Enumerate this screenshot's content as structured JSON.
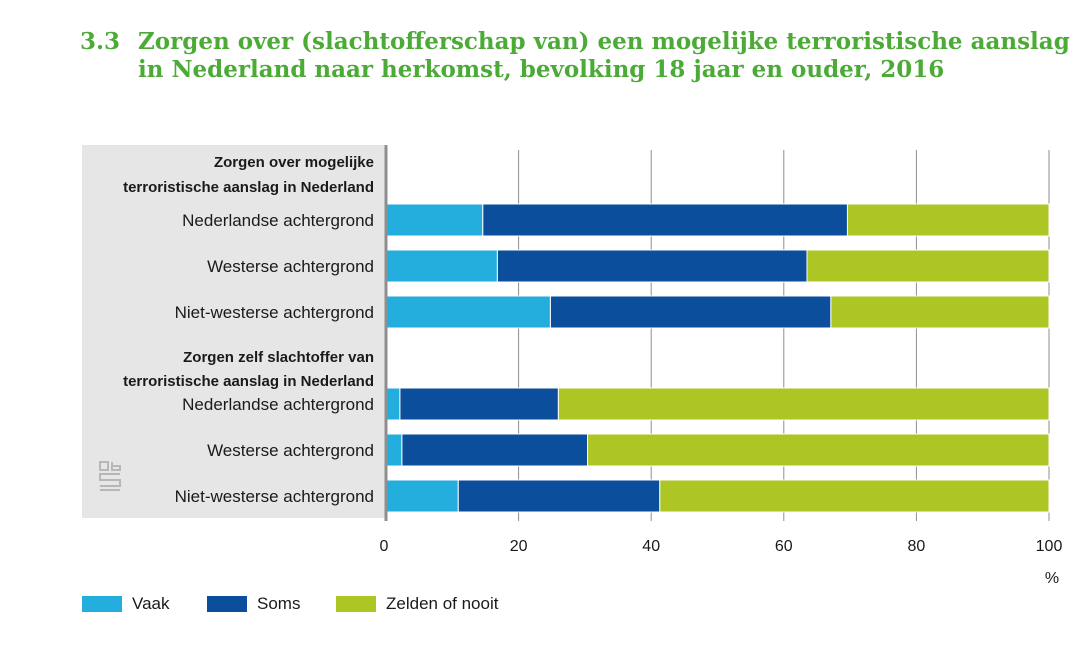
{
  "title": {
    "number": "3.3",
    "line1": "Zorgen over (slachtofferschap van) een mogelijke terroristische aanslag",
    "line2": "in Nederland naar herkomst, bevolking 18 jaar en ouder, 2016"
  },
  "logo_icon": "cbs-logo-icon",
  "colors": {
    "vaak": "#23aedd",
    "soms": "#0b4f9c",
    "zelden": "#aec623",
    "panel": "#e6e6e6",
    "axis": "#8f8f8f",
    "title": "#4cab37"
  },
  "chart_data": {
    "type": "bar",
    "orientation": "horizontal",
    "stacked": true,
    "xlim": [
      0,
      100
    ],
    "xticks": [
      "0",
      "20",
      "40",
      "60",
      "80",
      "100"
    ],
    "xunit": "%",
    "grid": true,
    "legend_position": "bottom-left",
    "groups": [
      {
        "heading": [
          "Zorgen over mogelijke",
          "terroristische aanslag in Nederland"
        ],
        "rows": [
          {
            "label": "Nederlandse achtergrond",
            "values": [
              14.6,
              55.0,
              30.4
            ]
          },
          {
            "label": "Westerse achtergrond",
            "values": [
              16.8,
              46.7,
              36.5
            ]
          },
          {
            "label": "Niet-westerse achtergrond",
            "values": [
              24.8,
              42.3,
              32.9
            ]
          }
        ]
      },
      {
        "heading": [
          "Zorgen zelf slachtoffer van",
          "terroristische aanslag in Nederland"
        ],
        "rows": [
          {
            "label": "Nederlandse achtergrond",
            "values": [
              2.1,
              23.9,
              74.0
            ]
          },
          {
            "label": "Westerse achtergrond",
            "values": [
              2.4,
              28.0,
              69.6
            ]
          },
          {
            "label": "Niet-westerse achtergrond",
            "values": [
              10.9,
              30.4,
              58.7
            ]
          }
        ]
      }
    ],
    "series": [
      {
        "name": "Vaak"
      },
      {
        "name": "Soms"
      },
      {
        "name": "Zelden of nooit"
      }
    ]
  }
}
